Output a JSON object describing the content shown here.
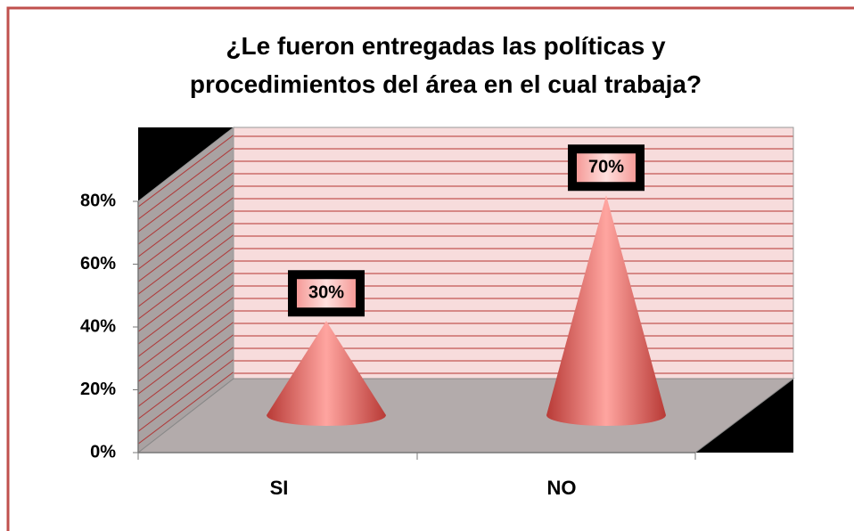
{
  "chart_data": {
    "type": "cone3d",
    "title": "¿Le fueron entregadas las políticas y procedimientos del área en el cual trabaja?",
    "categories": [
      "SI",
      "NO"
    ],
    "values": [
      30,
      70
    ],
    "value_labels": [
      "30%",
      "70%"
    ],
    "color": "#d9534f",
    "ylim": [
      0,
      80
    ],
    "yticks": [
      {
        "value": 0,
        "label": "0%"
      },
      {
        "value": 20,
        "label": "20%"
      },
      {
        "value": 40,
        "label": "40%"
      },
      {
        "value": 60,
        "label": "60%"
      },
      {
        "value": 80,
        "label": "80%"
      }
    ]
  }
}
